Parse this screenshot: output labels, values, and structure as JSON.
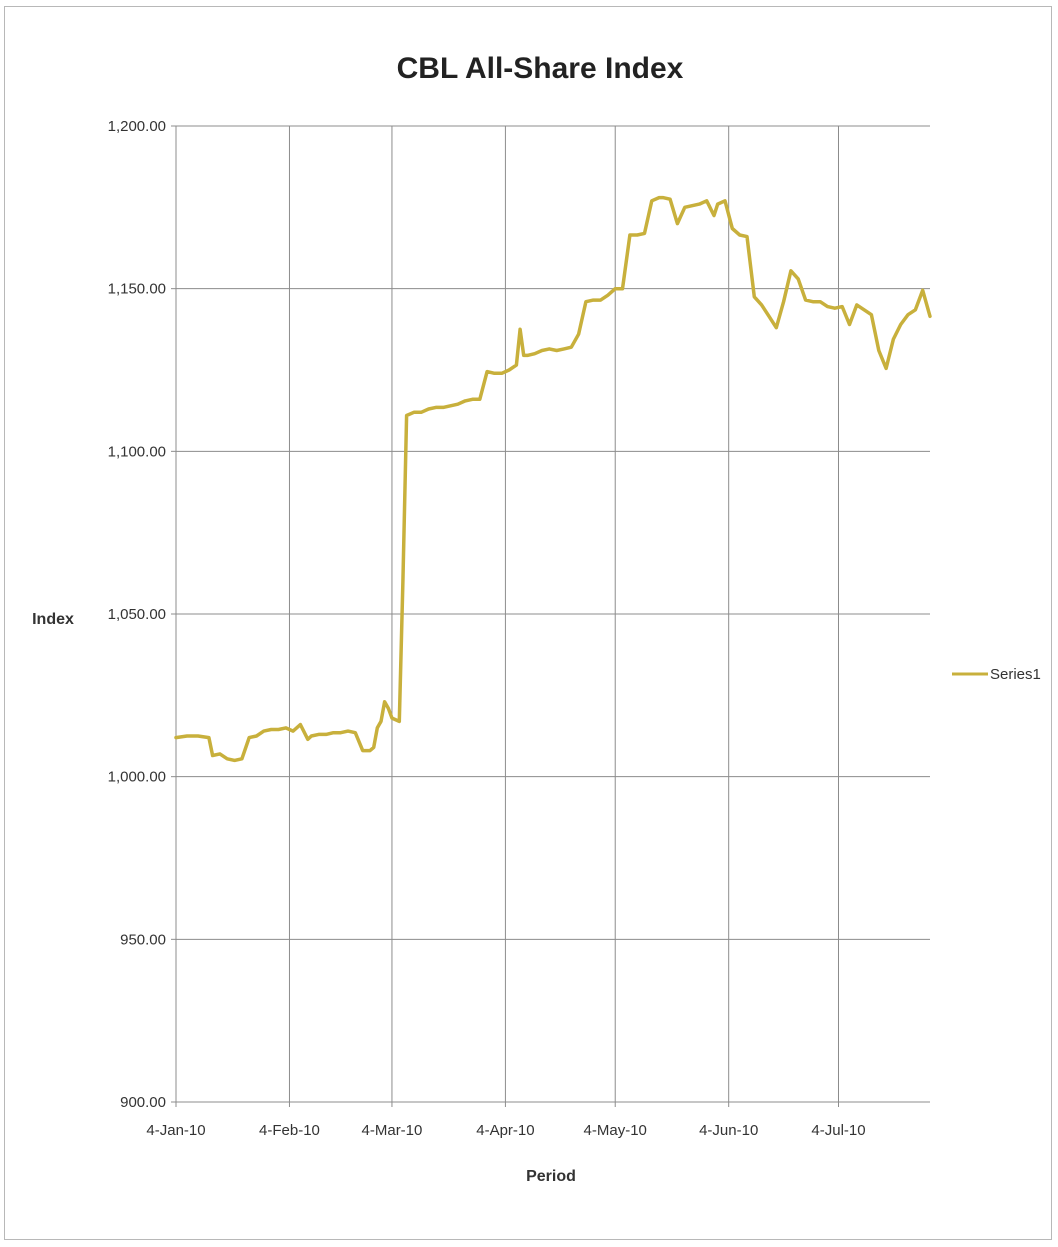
{
  "chart_data": {
    "type": "line",
    "title": "CBL All-Share Index",
    "xlabel": "Period",
    "ylabel": "Index",
    "ylim": [
      900,
      1200
    ],
    "xlim": [
      "2010-01-04",
      "2010-07-29"
    ],
    "yticks": [
      900,
      950,
      1000,
      1050,
      1100,
      1150,
      1200
    ],
    "ytick_labels": [
      "900.00",
      "950.00",
      "1,000.00",
      "1,050.00",
      "1,100.00",
      "1,150.00",
      "1,200.00"
    ],
    "xticks": [
      "2010-01-04",
      "2010-02-04",
      "2010-03-04",
      "2010-04-04",
      "2010-05-04",
      "2010-06-04",
      "2010-07-04"
    ],
    "xtick_labels": [
      "4-Jan-10",
      "4-Feb-10",
      "4-Mar-10",
      "4-Apr-10",
      "4-May-10",
      "4-Jun-10",
      "4-Jul-10"
    ],
    "grid": true,
    "legend": "right",
    "line_color": "#c8b03c",
    "series": [
      {
        "name": "Series1",
        "x": [
          "2010-01-04",
          "2010-01-07",
          "2010-01-10",
          "2010-01-13",
          "2010-01-14",
          "2010-01-16",
          "2010-01-18",
          "2010-01-20",
          "2010-01-22",
          "2010-01-24",
          "2010-01-26",
          "2010-01-28",
          "2010-01-30",
          "2010-02-01",
          "2010-02-03",
          "2010-02-05",
          "2010-02-07",
          "2010-02-09",
          "2010-02-10",
          "2010-02-12",
          "2010-02-14",
          "2010-02-16",
          "2010-02-18",
          "2010-02-20",
          "2010-02-22",
          "2010-02-24",
          "2010-02-26",
          "2010-02-27",
          "2010-02-28",
          "2010-03-01",
          "2010-03-02",
          "2010-03-03",
          "2010-03-04",
          "2010-03-06",
          "2010-03-07",
          "2010-03-08",
          "2010-03-10",
          "2010-03-12",
          "2010-03-14",
          "2010-03-16",
          "2010-03-18",
          "2010-03-20",
          "2010-03-22",
          "2010-03-24",
          "2010-03-26",
          "2010-03-28",
          "2010-03-30",
          "2010-04-01",
          "2010-04-03",
          "2010-04-05",
          "2010-04-07",
          "2010-04-08",
          "2010-04-09",
          "2010-04-10",
          "2010-04-12",
          "2010-04-14",
          "2010-04-16",
          "2010-04-18",
          "2010-04-20",
          "2010-04-22",
          "2010-04-24",
          "2010-04-26",
          "2010-04-28",
          "2010-04-30",
          "2010-05-02",
          "2010-05-04",
          "2010-05-06",
          "2010-05-08",
          "2010-05-10",
          "2010-05-12",
          "2010-05-14",
          "2010-05-16",
          "2010-05-17",
          "2010-05-19",
          "2010-05-21",
          "2010-05-23",
          "2010-05-25",
          "2010-05-27",
          "2010-05-29",
          "2010-05-31",
          "2010-06-01",
          "2010-06-03",
          "2010-06-05",
          "2010-06-07",
          "2010-06-09",
          "2010-06-11",
          "2010-06-13",
          "2010-06-15",
          "2010-06-17",
          "2010-06-19",
          "2010-06-21",
          "2010-06-23",
          "2010-06-25",
          "2010-06-27",
          "2010-06-29",
          "2010-07-01",
          "2010-07-03",
          "2010-07-05",
          "2010-07-07",
          "2010-07-09",
          "2010-07-11",
          "2010-07-13",
          "2010-07-15",
          "2010-07-17",
          "2010-07-19",
          "2010-07-21",
          "2010-07-23",
          "2010-07-25",
          "2010-07-27",
          "2010-07-29"
        ],
        "y": [
          1012,
          1012.5,
          1012.5,
          1012,
          1006.5,
          1007,
          1005.5,
          1005,
          1005.5,
          1012,
          1012.5,
          1014,
          1014.5,
          1014.5,
          1015,
          1014,
          1016,
          1011.5,
          1012.5,
          1013,
          1013,
          1013.5,
          1013.5,
          1014,
          1013.5,
          1008,
          1008,
          1009,
          1015,
          1017,
          1023,
          1021,
          1018,
          1017,
          1060,
          1111,
          1112,
          1112,
          1113,
          1113.5,
          1113.5,
          1114,
          1114.5,
          1115.5,
          1116,
          1116,
          1124.5,
          1124,
          1124,
          1125,
          1126.5,
          1137.5,
          1129.5,
          1129.5,
          1130,
          1131,
          1131.5,
          1131,
          1131.5,
          1132,
          1136,
          1146,
          1146.5,
          1146.5,
          1148,
          1150,
          1150,
          1166.5,
          1166.5,
          1167,
          1177,
          1178,
          1178,
          1177.5,
          1170,
          1175,
          1175.5,
          1176,
          1177,
          1172.5,
          1176,
          1177,
          1168.5,
          1166.5,
          1166,
          1147.5,
          1145,
          1141.5,
          1138,
          1146,
          1155.5,
          1153,
          1146.5,
          1146,
          1146,
          1144.5,
          1144,
          1144.5,
          1139,
          1145,
          1143.5,
          1142,
          1131,
          1125.5,
          1134.5,
          1139,
          1142,
          1143.5,
          1149.5,
          1141.5
        ]
      }
    ]
  }
}
